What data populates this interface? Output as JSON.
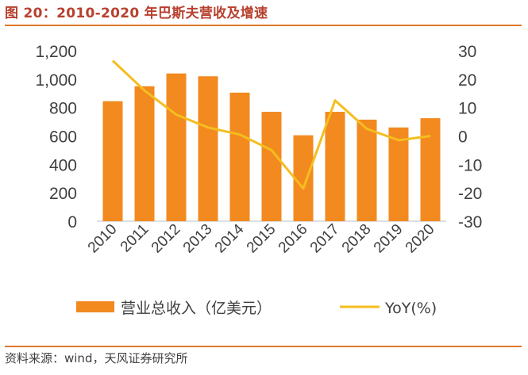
{
  "header": {
    "title": "图 20：2010-2020 年巴斯夫营收及增速"
  },
  "footer": {
    "source": "资料来源：wind，天风证券研究所"
  },
  "colors": {
    "bar": "#F28A20",
    "line": "#F5BD1F",
    "accent": "#E0782A",
    "title": "#B8402E"
  },
  "chart_data": {
    "type": "bar",
    "title": "",
    "categories": [
      "2010",
      "2011",
      "2012",
      "2013",
      "2014",
      "2015",
      "2016",
      "2017",
      "2018",
      "2019",
      "2020"
    ],
    "y_left": {
      "ticks": [
        "0",
        "200",
        "400",
        "600",
        "800",
        "1,000",
        "1,200"
      ],
      "range": [
        0,
        1200
      ]
    },
    "y_right": {
      "ticks": [
        "-30",
        "-20",
        "-10",
        "0",
        "10",
        "20",
        "30"
      ],
      "range": [
        -30,
        30
      ]
    },
    "series": [
      {
        "name": "营业总收入（亿美元）",
        "type": "bar",
        "axis": "left",
        "values": [
          845,
          950,
          1040,
          1020,
          905,
          770,
          605,
          770,
          715,
          660,
          725
        ]
      },
      {
        "name": "YoY(%)",
        "type": "line",
        "axis": "right",
        "values": [
          26.5,
          16,
          7.5,
          3,
          0.5,
          -5,
          -18.5,
          12.5,
          2.5,
          -1.5,
          0
        ]
      }
    ],
    "grid": false,
    "legend": "bottom"
  }
}
